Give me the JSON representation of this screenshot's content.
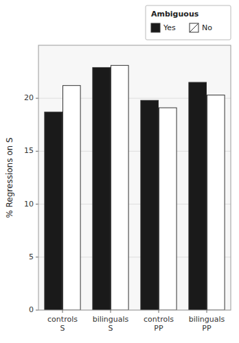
{
  "chart_data": {
    "type": "bar",
    "categories": [
      "controls\nS",
      "bilinguals\nS",
      "controls\nPP",
      "bilinguals\nPP"
    ],
    "series": [
      {
        "name": "Yes",
        "color": "#1a1a1a",
        "values": [
          18.7,
          22.9,
          19.8,
          21.5
        ]
      },
      {
        "name": "No",
        "color": "#ffffff",
        "values": [
          21.2,
          23.1,
          19.1,
          20.3
        ]
      }
    ],
    "ylabel": "% Regressions on S",
    "legend_title": "Ambiguous",
    "ylim": [
      0,
      25
    ],
    "yticks": [
      0,
      5,
      10,
      15,
      20
    ],
    "grid": true,
    "legend": "upper right"
  }
}
